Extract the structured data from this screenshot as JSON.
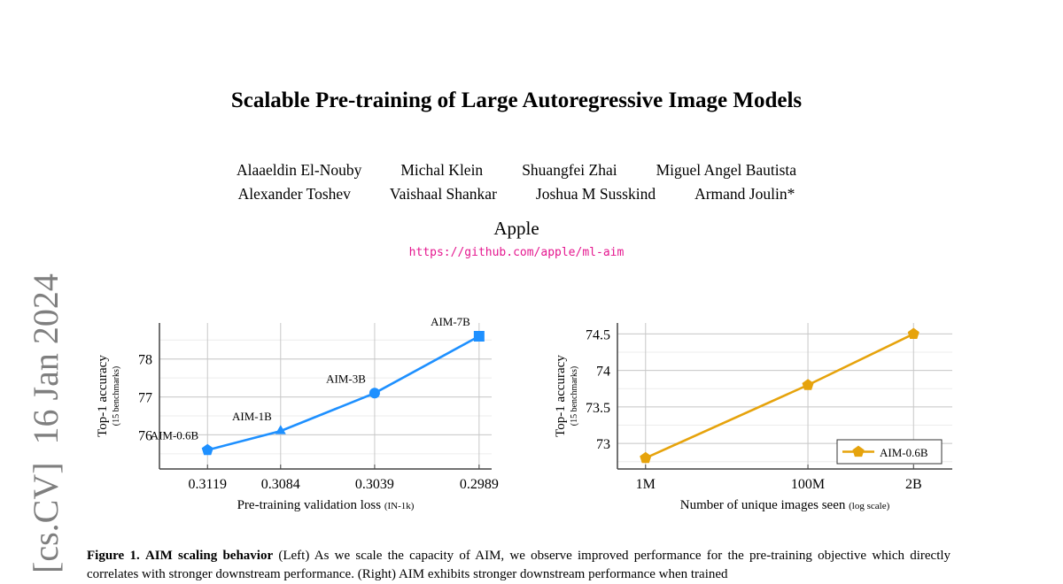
{
  "paper": {
    "title": "Scalable Pre-training of Large Autoregressive Image Models",
    "authors_row1": [
      "Alaaeldin El-Nouby",
      "Michal Klein",
      "Shuangfei Zhai",
      "Miguel Angel Bautista"
    ],
    "authors_row2": [
      "Alexander Toshev",
      "Vaishaal Shankar",
      "Joshua M Susskind",
      "Armand Joulin*"
    ],
    "affiliation": "Apple",
    "url": "https://github.com/apple/ml-aim",
    "arxiv_stamp": "[cs.CV]  16 Jan 2024",
    "caption": {
      "label": "Figure 1.",
      "bold_title": "AIM scaling behavior",
      "line1": "(Left) As we scale the capacity of AIM, we observe improved performance for the pre-training objective",
      "line2": "which directly correlates with stronger downstream performance. (Right) AIM exhibits stronger downstream performance when trained"
    }
  },
  "chart_data": [
    {
      "type": "line",
      "xlabel": "Pre-training validation loss",
      "xlabel_small": "(IN-1k)",
      "ylabel": "Top-1 accuracy",
      "ylabel_small": "(15 benchmarks)",
      "x": [
        0.3119,
        0.3084,
        0.3039,
        0.2989
      ],
      "x_tick_labels": [
        "0.3119",
        "0.3084",
        "0.3039",
        "0.2989"
      ],
      "x_reversed": true,
      "xlim": [
        0.3142,
        0.2983
      ],
      "y_ticks": [
        76,
        77,
        78
      ],
      "ylim": [
        75.1,
        78.95
      ],
      "grid": true,
      "color": "#1e90ff",
      "series": [
        {
          "values": [
            75.6,
            76.1,
            77.1,
            78.6
          ],
          "point_labels": [
            "AIM-0.6B",
            "AIM-1B",
            "AIM-3B",
            "AIM-7B"
          ],
          "markers": [
            "pentagon",
            "triangle",
            "circle",
            "square"
          ]
        }
      ]
    },
    {
      "type": "line",
      "xlabel": "Number of unique images seen",
      "xlabel_small": "(log scale)",
      "ylabel": "Top-1 accuracy",
      "ylabel_small": "(15 benchmarks)",
      "x": [
        1000000,
        100000000,
        2000000000
      ],
      "x_tick_labels": [
        "1M",
        "100M",
        "2B"
      ],
      "x_scale": "log",
      "xlim": [
        450000,
        6000000000
      ],
      "y_ticks": [
        73,
        73.5,
        74,
        74.5
      ],
      "y_tick_labels": [
        "73",
        "73.5",
        "74",
        "74.5"
      ],
      "ylim": [
        72.65,
        74.65
      ],
      "grid": true,
      "legend_position": "bottom-right",
      "color": "#e6a30c",
      "series": [
        {
          "name": "AIM-0.6B",
          "values": [
            72.8,
            73.8,
            74.5
          ],
          "marker": "pentagon"
        }
      ]
    }
  ]
}
